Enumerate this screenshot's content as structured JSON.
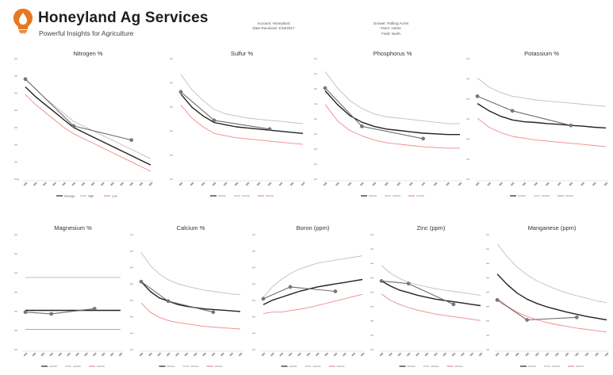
{
  "header": {
    "company_name": "Honeyland Ag Services",
    "tagline": "Powerful Insights for Agriculture",
    "account_lines": [
      "Account: Honeyland",
      "Date Received: 4/19/2017"
    ],
    "grower_lines": [
      "Grower: Rolling Acres",
      "Farm: Home",
      "Field: North"
    ]
  },
  "colors": {
    "sample": "#6e6e6e",
    "target": "#222222",
    "high": "#bfbfbf",
    "low": "#ef8a8a",
    "brand_orange": "#e87722"
  },
  "icons": {
    "logo": "honey-drop-lightbulb-icon"
  },
  "chart_data": [
    {
      "type": "line",
      "title": "Nitrogen %",
      "categories": [
        "",
        "",
        "",
        "",
        "",
        "",
        "",
        "",
        "",
        "",
        "",
        "",
        "",
        ""
      ],
      "series": [
        {
          "name": "Average",
          "role": "sample",
          "values": [
            6.0,
            null,
            null,
            null,
            null,
            3.0,
            null,
            null,
            null,
            null,
            null,
            2.1,
            null,
            null
          ],
          "markers": true
        },
        {
          "name": "Target",
          "role": "target",
          "values": [
            5.5,
            4.9,
            4.4,
            3.9,
            3.4,
            2.9,
            2.6,
            2.3,
            2.0,
            1.7,
            1.4,
            1.1,
            0.8,
            0.5
          ]
        },
        {
          "name": "High",
          "role": "high",
          "values": [
            6.0,
            5.4,
            4.8,
            4.3,
            3.8,
            3.3,
            3.0,
            2.7,
            2.4,
            2.1,
            1.8,
            1.5,
            1.2,
            0.9
          ]
        },
        {
          "name": "Low",
          "role": "low",
          "values": [
            5.0,
            4.4,
            3.9,
            3.4,
            2.9,
            2.5,
            2.2,
            1.9,
            1.6,
            1.3,
            1.0,
            0.7,
            0.4,
            0.1
          ]
        }
      ],
      "ylim": [
        0,
        7
      ],
      "yticks": [
        "0",
        "",
        "",
        "",
        "",
        "",
        "",
        ""
      ],
      "legend": [
        "Average",
        "High",
        "Low"
      ]
    },
    {
      "type": "line",
      "title": "Sulfur %",
      "categories": [
        "",
        "",
        "",
        "",
        "",
        "",
        "",
        "",
        "",
        "",
        "",
        ""
      ],
      "series": [
        {
          "name": "",
          "role": "sample",
          "values": [
            0.42,
            null,
            null,
            0.29,
            null,
            null,
            null,
            null,
            0.25,
            null,
            null,
            null
          ],
          "markers": true
        },
        {
          "name": "",
          "role": "target",
          "values": [
            0.41,
            0.35,
            0.31,
            0.28,
            0.27,
            0.26,
            0.255,
            0.25,
            0.245,
            0.24,
            0.235,
            0.23
          ]
        },
        {
          "name": "",
          "role": "high",
          "values": [
            0.5,
            0.43,
            0.38,
            0.34,
            0.32,
            0.31,
            0.3,
            0.295,
            0.29,
            0.285,
            0.28,
            0.275
          ]
        },
        {
          "name": "",
          "role": "low",
          "values": [
            0.36,
            0.3,
            0.26,
            0.23,
            0.22,
            0.21,
            0.205,
            0.2,
            0.195,
            0.19,
            0.185,
            0.18
          ]
        }
      ],
      "ylim": [
        0.05,
        0.55
      ],
      "yticks": [
        "",
        "",
        "",
        "",
        "",
        ""
      ],
      "legend": [
        "",
        "",
        ""
      ]
    },
    {
      "type": "line",
      "title": "Phosphorus %",
      "categories": [
        "",
        "",
        "",
        "",
        "",
        "",
        "",
        "",
        "",
        "",
        "",
        ""
      ],
      "series": [
        {
          "name": "",
          "role": "sample",
          "values": [
            0.72,
            null,
            null,
            0.44,
            null,
            null,
            null,
            null,
            0.35,
            null,
            null,
            null
          ],
          "markers": true
        },
        {
          "name": "",
          "role": "target",
          "values": [
            0.7,
            0.6,
            0.52,
            0.47,
            0.44,
            0.42,
            0.41,
            0.4,
            0.39,
            0.385,
            0.38,
            0.38
          ]
        },
        {
          "name": "",
          "role": "high",
          "values": [
            0.84,
            0.72,
            0.63,
            0.57,
            0.53,
            0.51,
            0.5,
            0.49,
            0.48,
            0.47,
            0.46,
            0.46
          ]
        },
        {
          "name": "",
          "role": "low",
          "values": [
            0.6,
            0.48,
            0.41,
            0.37,
            0.34,
            0.32,
            0.31,
            0.3,
            0.29,
            0.285,
            0.28,
            0.28
          ]
        }
      ],
      "ylim": [
        0.1,
        0.9
      ],
      "yticks": [
        "",
        "",
        "",
        "",
        "",
        "",
        "",
        "",
        ""
      ],
      "legend": [
        "",
        "",
        ""
      ]
    },
    {
      "type": "line",
      "title": "Potassium %",
      "categories": [
        "",
        "",
        "",
        "",
        "",
        "",
        "",
        "",
        "",
        "",
        "",
        ""
      ],
      "series": [
        {
          "name": "",
          "role": "sample",
          "values": [
            3.1,
            null,
            null,
            2.7,
            null,
            null,
            null,
            null,
            2.3,
            null,
            null,
            null
          ],
          "markers": true
        },
        {
          "name": "",
          "role": "target",
          "values": [
            2.9,
            2.7,
            2.55,
            2.45,
            2.4,
            2.38,
            2.35,
            2.33,
            2.3,
            2.28,
            2.25,
            2.23
          ]
        },
        {
          "name": "",
          "role": "high",
          "values": [
            3.6,
            3.35,
            3.2,
            3.1,
            3.05,
            3.0,
            2.97,
            2.94,
            2.91,
            2.88,
            2.85,
            2.82
          ]
        },
        {
          "name": "",
          "role": "low",
          "values": [
            2.5,
            2.25,
            2.1,
            2.0,
            1.95,
            1.9,
            1.87,
            1.84,
            1.81,
            1.78,
            1.75,
            1.72
          ]
        }
      ],
      "ylim": [
        1.0,
        4.0
      ],
      "yticks": [
        "",
        "",
        "",
        "",
        "",
        "",
        ""
      ],
      "legend": [
        "",
        "",
        ""
      ]
    },
    {
      "type": "line",
      "title": "Magnesium %",
      "categories": [
        "",
        "",
        "",
        "",
        "",
        "",
        "",
        "",
        "",
        "",
        "",
        ""
      ],
      "series": [
        {
          "name": "",
          "role": "sample",
          "values": [
            0.38,
            null,
            null,
            0.37,
            null,
            null,
            null,
            null,
            0.4,
            null,
            null,
            null
          ],
          "markers": true
        },
        {
          "name": "",
          "role": "target",
          "values": [
            0.39,
            0.39,
            0.39,
            0.39,
            0.39,
            0.39,
            0.39,
            0.39,
            0.39,
            0.39,
            0.39,
            0.39
          ]
        },
        {
          "name": "",
          "role": "high",
          "values": [
            0.58,
            0.58,
            0.58,
            0.58,
            0.58,
            0.58,
            0.58,
            0.58,
            0.58,
            0.58,
            0.58,
            0.58
          ]
        },
        {
          "name": "",
          "role": "low",
          "values": [
            0.28,
            0.28,
            0.28,
            0.28,
            0.28,
            0.28,
            0.28,
            0.28,
            0.28,
            0.28,
            0.28,
            0.28
          ]
        }
      ],
      "ylim": [
        0.2,
        0.8
      ],
      "yticks": [
        "",
        "",
        "",
        "",
        "",
        "",
        ""
      ],
      "legend": [
        "",
        "",
        ""
      ]
    },
    {
      "type": "line",
      "title": "Calcium %",
      "categories": [
        "",
        "",
        "",
        "",
        "",
        "",
        "",
        "",
        "",
        "",
        "",
        ""
      ],
      "series": [
        {
          "name": "",
          "role": "sample",
          "values": [
            1.25,
            null,
            null,
            0.95,
            null,
            null,
            null,
            null,
            0.78,
            null,
            null,
            null
          ],
          "markers": true
        },
        {
          "name": "",
          "role": "target",
          "values": [
            1.25,
            1.1,
            1.0,
            0.95,
            0.9,
            0.87,
            0.85,
            0.83,
            0.82,
            0.81,
            0.8,
            0.79
          ]
        },
        {
          "name": "",
          "role": "high",
          "values": [
            1.7,
            1.5,
            1.37,
            1.28,
            1.22,
            1.18,
            1.15,
            1.12,
            1.1,
            1.08,
            1.06,
            1.05
          ]
        },
        {
          "name": "",
          "role": "low",
          "values": [
            0.92,
            0.78,
            0.7,
            0.65,
            0.62,
            0.6,
            0.58,
            0.56,
            0.55,
            0.54,
            0.53,
            0.52
          ]
        }
      ],
      "ylim": [
        0.3,
        1.9
      ],
      "yticks": [
        "",
        "",
        "",
        "",
        "",
        "",
        "",
        ""
      ],
      "legend": [
        "",
        "",
        ""
      ]
    },
    {
      "type": "line",
      "title": "Boron (ppm)",
      "categories": [
        "",
        "",
        "",
        "",
        "",
        "",
        "",
        "",
        "",
        "",
        "",
        ""
      ],
      "series": [
        {
          "name": "",
          "role": "sample",
          "values": [
            30,
            null,
            null,
            38,
            null,
            null,
            null,
            null,
            35,
            null,
            null,
            null
          ],
          "markers": true
        },
        {
          "name": "",
          "role": "target",
          "values": [
            26,
            29,
            31,
            33,
            35,
            36.5,
            38,
            39,
            40,
            41,
            42,
            43
          ]
        },
        {
          "name": "",
          "role": "high",
          "values": [
            31,
            38,
            43,
            47,
            50,
            52,
            54,
            55,
            56,
            57,
            58,
            59
          ]
        },
        {
          "name": "",
          "role": "low",
          "values": [
            20,
            21,
            21,
            22,
            23,
            24,
            25.5,
            27,
            28.5,
            30,
            31.5,
            33
          ]
        }
      ],
      "ylim": [
        0,
        70
      ],
      "yticks": [
        "",
        "",
        "",
        "",
        "",
        "",
        "",
        ""
      ],
      "legend": [
        "",
        "",
        ""
      ]
    },
    {
      "type": "line",
      "title": "Zinc (ppm)",
      "categories": [
        "",
        "",
        "",
        "",
        "",
        "",
        "",
        "",
        "",
        "",
        "",
        ""
      ],
      "series": [
        {
          "name": "",
          "role": "sample",
          "values": [
            48,
            null,
            null,
            46,
            null,
            null,
            null,
            null,
            30,
            null,
            null,
            null
          ],
          "markers": true
        },
        {
          "name": "",
          "role": "target",
          "values": [
            48,
            44,
            41,
            39,
            37,
            35.5,
            34,
            33,
            32,
            31,
            30,
            29
          ]
        },
        {
          "name": "",
          "role": "high",
          "values": [
            60,
            54,
            50,
            47,
            45,
            43.5,
            42,
            41,
            40,
            39,
            38,
            37
          ]
        },
        {
          "name": "",
          "role": "low",
          "values": [
            38,
            33,
            30,
            27.5,
            25.5,
            24,
            22.5,
            21.5,
            20.5,
            19.5,
            18.5,
            17.5
          ]
        }
      ],
      "ylim": [
        0,
        80
      ],
      "yticks": [
        "",
        "",
        "",
        "",
        "",
        "",
        "",
        "",
        ""
      ],
      "legend": [
        "",
        "",
        ""
      ]
    },
    {
      "type": "line",
      "title": "Manganese (ppm)",
      "categories": [
        "",
        "",
        "",
        "",
        "",
        "",
        "",
        "",
        "",
        "",
        "",
        ""
      ],
      "series": [
        {
          "name": "",
          "role": "sample",
          "values": [
            50,
            null,
            null,
            27,
            null,
            null,
            null,
            null,
            30,
            null,
            null,
            null
          ],
          "markers": true
        },
        {
          "name": "",
          "role": "target",
          "values": [
            80,
            68,
            58,
            51,
            46,
            42,
            39,
            36,
            33.5,
            31,
            29,
            27
          ]
        },
        {
          "name": "",
          "role": "high",
          "values": [
            115,
            100,
            88,
            79,
            72,
            67,
            62,
            58,
            55,
            52,
            49,
            47
          ]
        },
        {
          "name": "",
          "role": "low",
          "values": [
            52,
            43,
            36,
            31,
            27,
            24,
            21.5,
            19.5,
            17.5,
            16,
            14.5,
            13
          ]
        }
      ],
      "ylim": [
        0,
        120
      ],
      "yticks": [
        "",
        "",
        "",
        "",
        "",
        "",
        "",
        "",
        ""
      ],
      "legend": [
        "",
        "",
        ""
      ]
    }
  ]
}
